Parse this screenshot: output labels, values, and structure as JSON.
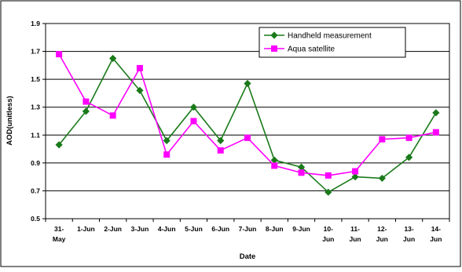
{
  "chart_data": {
    "type": "line",
    "title": "",
    "xlabel": "Date",
    "ylabel": "AOD(unitless)",
    "categories": [
      [
        "31-",
        "May"
      ],
      [
        "1-Jun"
      ],
      [
        "2-Jun"
      ],
      [
        "3-Jun"
      ],
      [
        "4-Jun"
      ],
      [
        "5-Jun"
      ],
      [
        "6-Jun"
      ],
      [
        "7-Jun"
      ],
      [
        "8-Jun"
      ],
      [
        "9-Jun"
      ],
      [
        "10-",
        "Jun"
      ],
      [
        "11-",
        "Jun"
      ],
      [
        "12-",
        "Jun"
      ],
      [
        "13-",
        "Jun"
      ],
      [
        "14-",
        "Jun"
      ]
    ],
    "ylim": [
      0.5,
      1.9
    ],
    "yticks": [
      "0.5",
      "0.7",
      "0.9",
      "1.1",
      "1.3",
      "1.5",
      "1.7",
      "1.9"
    ],
    "grid": "horizontal",
    "legend_position": "top-right",
    "series": [
      {
        "name": "Handheld measurement",
        "color": "#1a7a1a",
        "marker": "diamond",
        "values": [
          1.03,
          1.27,
          1.65,
          1.42,
          1.06,
          1.3,
          1.06,
          1.47,
          0.92,
          0.87,
          0.69,
          0.8,
          0.79,
          0.94,
          1.26
        ]
      },
      {
        "name": "Aqua satellite",
        "color": "#ff00ff",
        "marker": "square",
        "values": [
          1.68,
          1.34,
          1.24,
          1.58,
          0.96,
          1.2,
          0.99,
          1.08,
          0.88,
          0.83,
          0.81,
          0.84,
          1.07,
          1.08,
          1.12
        ]
      }
    ]
  }
}
